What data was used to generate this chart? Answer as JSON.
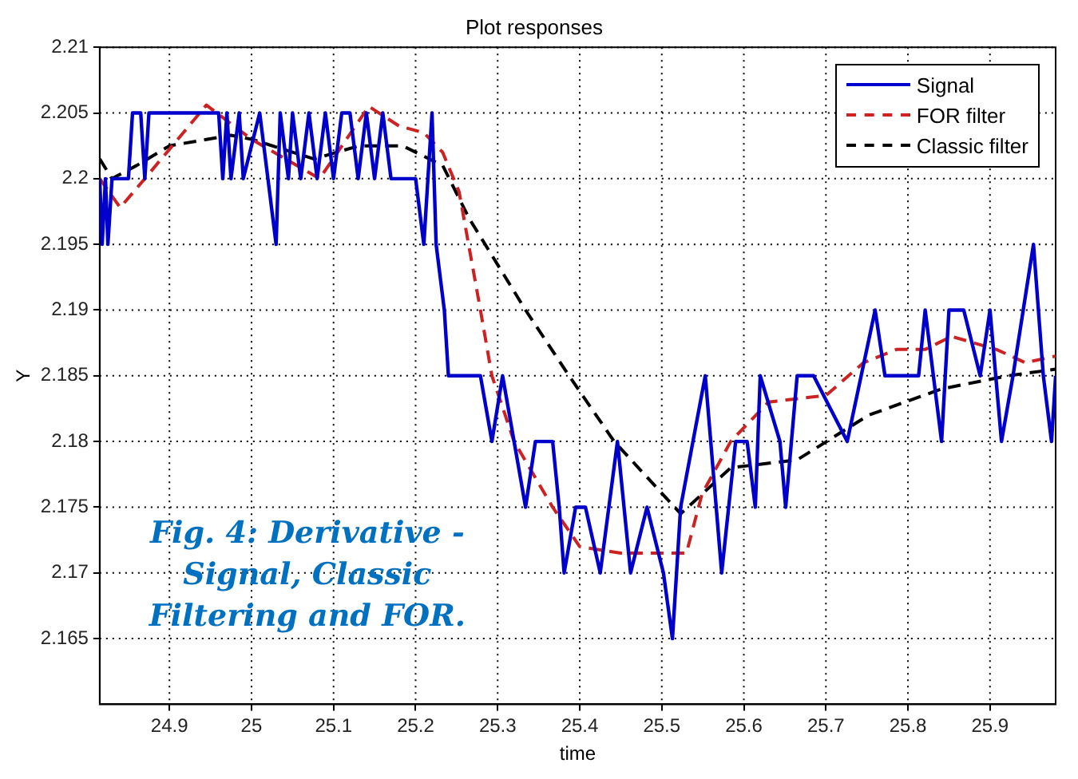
{
  "chart_data": {
    "type": "line",
    "title": "Plot responses",
    "xlabel": "time",
    "ylabel": "Y",
    "annotations": [
      "Fig. 4: Derivative - Signal, Classic Filtering and FOR."
    ],
    "xlim": [
      24.815,
      25.98
    ],
    "xticks": [
      24.9,
      25,
      25.1,
      25.2,
      25.3,
      25.4,
      25.5,
      25.6,
      25.7,
      25.8,
      25.9
    ],
    "ylim": [
      2.16,
      2.21
    ],
    "yticks": [
      2.165,
      2.17,
      2.175,
      2.18,
      2.185,
      2.19,
      2.195,
      2.2,
      2.205,
      2.21
    ],
    "grid": true,
    "legend": "top right",
    "marker": "none",
    "series": [
      {
        "name": "Signal",
        "color": "#0000cc",
        "line_style": "solid",
        "x": [
          24.815,
          24.818,
          24.822,
          24.825,
          24.83,
          24.85,
          24.855,
          24.865,
          24.87,
          24.875,
          24.96,
          24.965,
          24.97,
          24.975,
          24.985,
          24.99,
          25.01,
          25.02,
          25.03,
          25.035,
          25.045,
          25.05,
          25.06,
          25.07,
          25.08,
          25.09,
          25.1,
          25.11,
          25.12,
          25.13,
          25.14,
          25.15,
          25.16,
          25.17,
          25.2,
          25.21,
          25.215,
          25.22,
          25.225,
          25.235,
          25.24,
          25.279,
          25.293,
          25.306,
          25.334,
          25.346,
          25.367,
          25.375,
          25.381,
          25.395,
          25.407,
          25.425,
          25.446,
          25.462,
          25.482,
          25.502,
          25.513,
          25.523,
          25.553,
          25.573,
          25.59,
          25.604,
          25.614,
          25.62,
          25.644,
          25.651,
          25.665,
          25.685,
          25.726,
          25.76,
          25.772,
          25.813,
          25.821,
          25.841,
          25.85,
          25.868,
          25.888,
          25.9,
          25.914,
          25.928,
          25.953,
          25.965,
          25.975,
          25.98
        ],
        "values": [
          2.2,
          2.195,
          2.2,
          2.195,
          2.2,
          2.2,
          2.205,
          2.205,
          2.2,
          2.205,
          2.205,
          2.2,
          2.205,
          2.2,
          2.205,
          2.2,
          2.205,
          2.2,
          2.195,
          2.205,
          2.2,
          2.205,
          2.2,
          2.205,
          2.2,
          2.205,
          2.2,
          2.205,
          2.205,
          2.2,
          2.205,
          2.2,
          2.205,
          2.2,
          2.2,
          2.195,
          2.2,
          2.205,
          2.195,
          2.19,
          2.185,
          2.185,
          2.18,
          2.185,
          2.175,
          2.18,
          2.18,
          2.175,
          2.17,
          2.175,
          2.175,
          2.17,
          2.18,
          2.17,
          2.175,
          2.17,
          2.165,
          2.175,
          2.185,
          2.17,
          2.18,
          2.18,
          2.175,
          2.185,
          2.18,
          2.175,
          2.185,
          2.185,
          2.18,
          2.19,
          2.185,
          2.185,
          2.19,
          2.18,
          2.19,
          2.19,
          2.185,
          2.19,
          2.18,
          2.185,
          2.195,
          2.185,
          2.18,
          2.185
        ]
      },
      {
        "name": "FOR filter",
        "color": "#cc2222",
        "line_style": "dashed",
        "x": [
          24.815,
          24.84,
          24.87,
          24.945,
          25.0,
          25.083,
          25.143,
          25.18,
          25.21,
          25.233,
          25.253,
          25.279,
          25.293,
          25.32,
          25.367,
          25.4,
          25.45,
          25.53,
          25.549,
          25.584,
          25.63,
          25.7,
          25.746,
          25.786,
          25.821,
          25.853,
          25.908,
          25.943,
          25.98
        ],
        "values": [
          2.2,
          2.1978,
          2.2,
          2.2056,
          2.203,
          2.2,
          2.2055,
          2.204,
          2.2035,
          2.202,
          2.199,
          2.19,
          2.185,
          2.18,
          2.175,
          2.172,
          2.1715,
          2.1715,
          2.176,
          2.18,
          2.183,
          2.1835,
          2.186,
          2.187,
          2.187,
          2.188,
          2.187,
          2.186,
          2.1865
        ]
      },
      {
        "name": "Classic filter",
        "color": "#000000",
        "line_style": "dashed",
        "x": [
          24.815,
          24.83,
          24.86,
          24.9,
          24.975,
          25.0,
          25.076,
          25.131,
          25.184,
          25.233,
          25.265,
          25.334,
          25.387,
          25.442,
          25.523,
          25.584,
          25.665,
          25.752,
          25.841,
          25.922,
          25.98
        ],
        "values": [
          2.2015,
          2.2,
          2.201,
          2.2025,
          2.2033,
          2.203,
          2.2015,
          2.2025,
          2.2025,
          2.201,
          2.197,
          2.19,
          2.185,
          2.18,
          2.1745,
          2.178,
          2.1786,
          2.182,
          2.184,
          2.185,
          2.1855
        ]
      }
    ]
  }
}
